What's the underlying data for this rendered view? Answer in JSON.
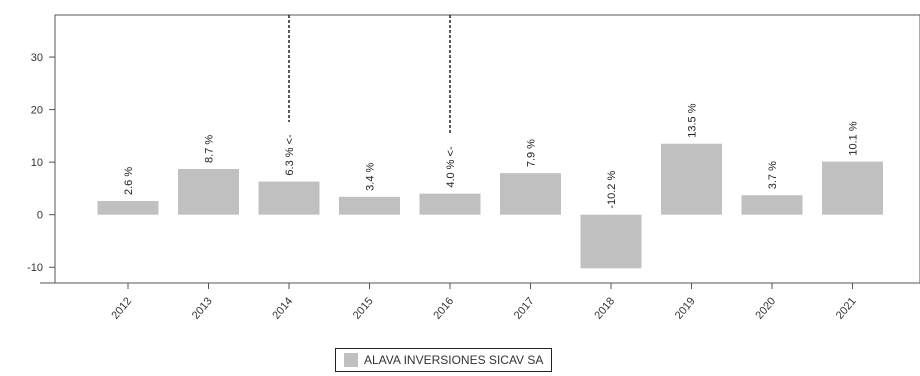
{
  "chart_data": {
    "type": "bar",
    "categories": [
      "2012",
      "2013",
      "2014",
      "2015",
      "2016",
      "2017",
      "2018",
      "2019",
      "2020",
      "2021"
    ],
    "series": [
      {
        "name": "ALAVA INVERSIONES SICAV SA",
        "values": [
          2.6,
          8.7,
          6.3,
          3.4,
          4.0,
          7.9,
          -10.2,
          13.5,
          3.7,
          10.1
        ],
        "labels": [
          "2.6 %",
          "8.7 %",
          "6.3 % <-",
          "3.4 %",
          "4.0 % <-",
          "7.9 %",
          "-10.2 %",
          "13.5 %",
          "3.7 %",
          "10.1 %"
        ],
        "color": "#c0c0c0"
      }
    ],
    "yticks": [
      "30",
      "20",
      "10",
      "0",
      "-10"
    ],
    "ylim": [
      -13,
      38
    ],
    "grid": false,
    "legend_position": "bottom",
    "markers": [
      {
        "category": "2014",
        "style": "dashed vertical line"
      },
      {
        "category": "2016",
        "style": "dashed vertical line"
      }
    ]
  }
}
